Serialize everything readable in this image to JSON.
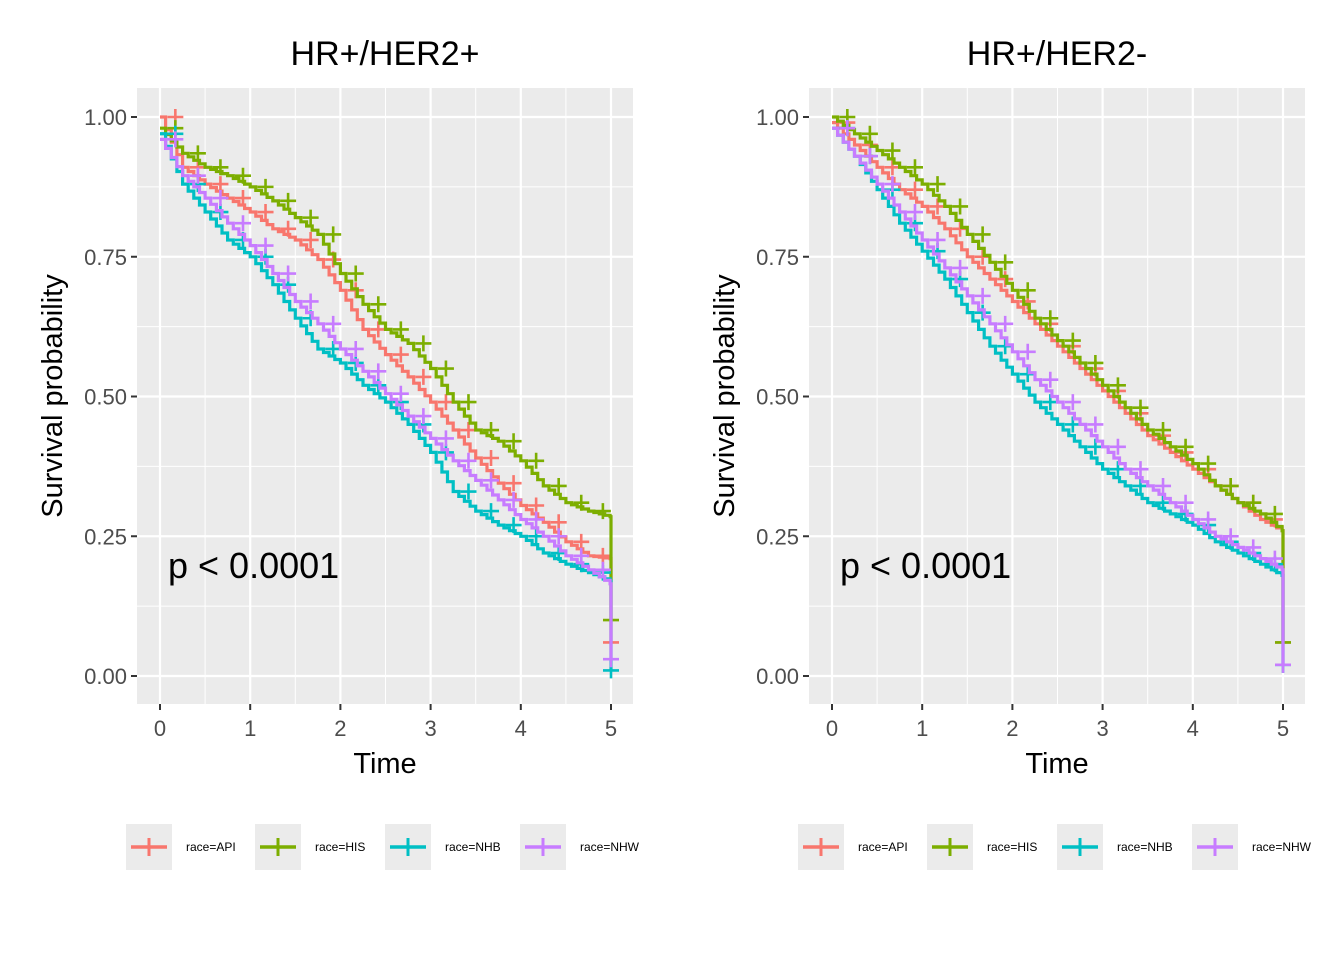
{
  "chart_data": [
    {
      "type": "line",
      "title": "HR+/HER2+",
      "xlabel": "Time",
      "ylabel": "Survival probability",
      "xlim": [
        0,
        5
      ],
      "ylim": [
        0,
        1
      ],
      "x_ticks": [
        "0",
        "1",
        "2",
        "3",
        "4",
        "5"
      ],
      "y_ticks": [
        "0.00",
        "0.25",
        "0.50",
        "0.75",
        "1.00"
      ],
      "annotation": "p < 0.0001",
      "legend_position": "bottom",
      "grid": true,
      "series": [
        {
          "name": "race=API",
          "color": "#F8766D",
          "x": [
            0,
            0.25,
            0.5,
            0.75,
            1.0,
            1.25,
            1.5,
            1.75,
            2.0,
            2.25,
            2.5,
            2.75,
            3.0,
            3.25,
            3.5,
            3.75,
            4.0,
            4.25,
            4.5,
            4.75,
            4.99,
            5.0
          ],
          "y": [
            1.0,
            0.91,
            0.88,
            0.855,
            0.83,
            0.8,
            0.78,
            0.745,
            0.69,
            0.62,
            0.575,
            0.535,
            0.49,
            0.44,
            0.39,
            0.345,
            0.305,
            0.275,
            0.24,
            0.215,
            0.21,
            0.06
          ]
        },
        {
          "name": "race=HIS",
          "color": "#7CAE00",
          "x": [
            0,
            0.25,
            0.5,
            0.75,
            1.0,
            1.25,
            1.5,
            1.75,
            2.0,
            2.25,
            2.5,
            2.75,
            3.0,
            3.25,
            3.5,
            3.75,
            4.0,
            4.25,
            4.5,
            4.75,
            4.99,
            5.0
          ],
          "y": [
            0.98,
            0.935,
            0.91,
            0.895,
            0.875,
            0.85,
            0.82,
            0.79,
            0.72,
            0.665,
            0.62,
            0.595,
            0.55,
            0.49,
            0.44,
            0.42,
            0.385,
            0.34,
            0.31,
            0.295,
            0.285,
            0.1
          ]
        },
        {
          "name": "race=NHB",
          "color": "#00BFC4",
          "x": [
            0,
            0.25,
            0.5,
            0.75,
            1.0,
            1.25,
            1.5,
            1.75,
            2.0,
            2.25,
            2.5,
            2.75,
            3.0,
            3.25,
            3.5,
            3.75,
            4.0,
            4.25,
            4.5,
            4.75,
            4.99,
            5.0
          ],
          "y": [
            0.97,
            0.88,
            0.83,
            0.78,
            0.75,
            0.7,
            0.64,
            0.585,
            0.56,
            0.52,
            0.49,
            0.45,
            0.4,
            0.33,
            0.295,
            0.27,
            0.25,
            0.22,
            0.2,
            0.185,
            0.17,
            0.01
          ]
        },
        {
          "name": "race=NHW",
          "color": "#C77CFF",
          "x": [
            0,
            0.25,
            0.5,
            0.75,
            1.0,
            1.25,
            1.5,
            1.75,
            2.0,
            2.25,
            2.5,
            2.75,
            3.0,
            3.25,
            3.5,
            3.75,
            4.0,
            4.25,
            4.5,
            4.75,
            4.99,
            5.0
          ],
          "y": [
            0.96,
            0.895,
            0.855,
            0.81,
            0.77,
            0.72,
            0.67,
            0.63,
            0.585,
            0.545,
            0.505,
            0.465,
            0.425,
            0.385,
            0.35,
            0.315,
            0.28,
            0.25,
            0.215,
            0.19,
            0.165,
            0.03
          ]
        }
      ]
    },
    {
      "type": "line",
      "title": "HR+/HER2-",
      "xlabel": "Time",
      "ylabel": "Survival probability",
      "xlim": [
        0,
        5
      ],
      "ylim": [
        0,
        1
      ],
      "x_ticks": [
        "0",
        "1",
        "2",
        "3",
        "4",
        "5"
      ],
      "y_ticks": [
        "0.00",
        "0.25",
        "0.50",
        "0.75",
        "1.00"
      ],
      "annotation": "p < 0.0001",
      "legend_position": "bottom",
      "grid": true,
      "series": [
        {
          "name": "race=API",
          "color": "#F8766D",
          "x": [
            0,
            0.25,
            0.5,
            0.75,
            1.0,
            1.25,
            1.5,
            1.75,
            2.0,
            2.25,
            2.5,
            2.75,
            3.0,
            3.25,
            3.5,
            3.75,
            4.0,
            4.25,
            4.5,
            4.75,
            4.99,
            5.0
          ],
          "y": [
            0.99,
            0.95,
            0.91,
            0.87,
            0.84,
            0.8,
            0.75,
            0.71,
            0.67,
            0.63,
            0.59,
            0.55,
            0.51,
            0.47,
            0.43,
            0.4,
            0.37,
            0.34,
            0.31,
            0.28,
            0.26,
            0.06
          ]
        },
        {
          "name": "race=HIS",
          "color": "#7CAE00",
          "x": [
            0,
            0.25,
            0.5,
            0.75,
            1.0,
            1.25,
            1.5,
            1.75,
            2.0,
            2.25,
            2.5,
            2.75,
            3.0,
            3.25,
            3.5,
            3.75,
            4.0,
            4.25,
            4.5,
            4.75,
            4.99,
            5.0
          ],
          "y": [
            1.0,
            0.97,
            0.94,
            0.91,
            0.88,
            0.84,
            0.79,
            0.74,
            0.69,
            0.64,
            0.6,
            0.56,
            0.52,
            0.48,
            0.44,
            0.41,
            0.38,
            0.34,
            0.31,
            0.29,
            0.26,
            0.06
          ]
        },
        {
          "name": "race=NHB",
          "color": "#00BFC4",
          "x": [
            0,
            0.25,
            0.5,
            0.75,
            1.0,
            1.25,
            1.5,
            1.75,
            2.0,
            2.25,
            2.5,
            2.75,
            3.0,
            3.25,
            3.5,
            3.75,
            4.0,
            4.25,
            4.5,
            4.75,
            4.99,
            5.0
          ],
          "y": [
            0.98,
            0.93,
            0.87,
            0.81,
            0.76,
            0.71,
            0.65,
            0.59,
            0.54,
            0.49,
            0.45,
            0.41,
            0.37,
            0.34,
            0.31,
            0.29,
            0.27,
            0.24,
            0.22,
            0.2,
            0.18,
            0.02
          ]
        },
        {
          "name": "race=NHW",
          "color": "#C77CFF",
          "x": [
            0,
            0.25,
            0.5,
            0.75,
            1.0,
            1.25,
            1.5,
            1.75,
            2.0,
            2.25,
            2.5,
            2.75,
            3.0,
            3.25,
            3.5,
            3.75,
            4.0,
            4.25,
            4.5,
            4.75,
            4.99,
            5.0
          ],
          "y": [
            0.98,
            0.93,
            0.88,
            0.83,
            0.78,
            0.73,
            0.68,
            0.63,
            0.58,
            0.53,
            0.49,
            0.45,
            0.41,
            0.37,
            0.34,
            0.31,
            0.28,
            0.25,
            0.23,
            0.21,
            0.19,
            0.02
          ]
        }
      ]
    }
  ]
}
